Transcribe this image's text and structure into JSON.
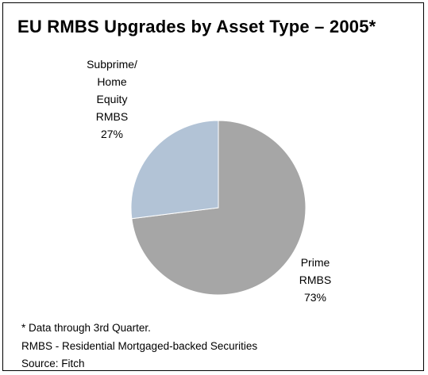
{
  "chart_data": {
    "type": "pie",
    "title": "EU RMBS Upgrades by Asset Type – 2005*",
    "slices": [
      {
        "label_lines": [
          "Prime",
          "RMBS"
        ],
        "value": 73,
        "value_label": "73%",
        "color": "#a6a6a6"
      },
      {
        "label_lines": [
          "Subprime/",
          "Home",
          "Equity",
          "RMBS"
        ],
        "value": 27,
        "value_label": "27%",
        "color": "#b2c3d6"
      }
    ],
    "start_angle_deg": 0,
    "direction": "clockwise"
  },
  "footnotes": {
    "note": "* Data through 3rd Quarter.",
    "definition": "RMBS - Residential Mortgaged-backed Securities",
    "source": "Source: Fitch"
  },
  "colors": {
    "border": "#000000",
    "background": "#ffffff",
    "slice_edge": "#ffffff"
  }
}
